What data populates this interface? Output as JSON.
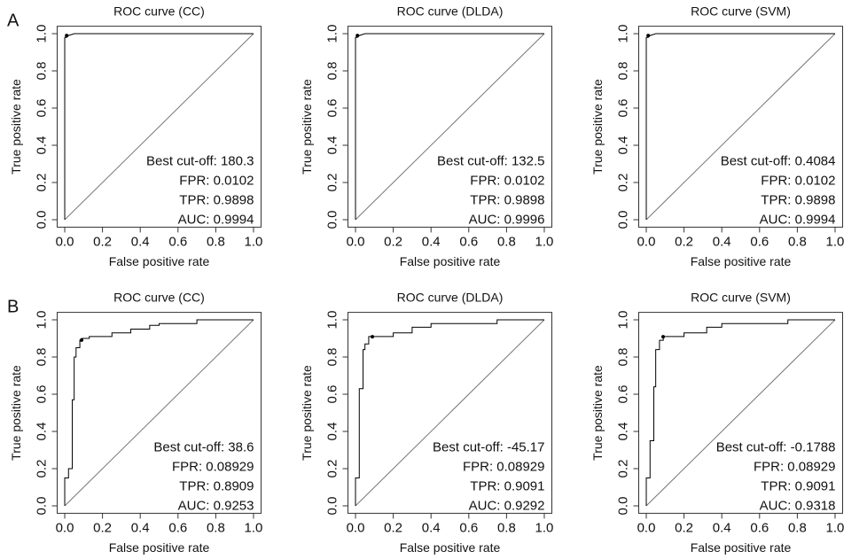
{
  "chart_data": [
    {
      "type": "line",
      "panel_label": "A",
      "title": "ROC curve (CC)",
      "xlabel": "False positive rate",
      "ylabel": "True positive rate",
      "x": [
        0,
        0,
        0.01,
        0.02,
        0.05,
        1
      ],
      "values": [
        0,
        0.98,
        0.98,
        0.99,
        1,
        1
      ],
      "color": "#000000",
      "best_point": {
        "x": 0.0102,
        "y": 0.9898
      },
      "annotations": [
        "Best cut-off: 180.3",
        "FPR: 0.0102",
        "TPR: 0.9898",
        "AUC: 0.9994"
      ],
      "xlim": [
        -0.04,
        1.04
      ],
      "ylim": [
        -0.04,
        1.04
      ],
      "xticks": [
        {
          "value": 0,
          "label": "0.0"
        },
        0.2,
        0.4,
        0.6,
        0.8,
        {
          "value": 1,
          "label": "1.0"
        }
      ],
      "yticks": [
        {
          "value": 0,
          "label": "0.0"
        },
        0.2,
        0.4,
        0.6,
        0.8,
        {
          "value": 1,
          "label": "1.0"
        }
      ]
    },
    {
      "type": "line",
      "title": "ROC curve (DLDA)",
      "xlabel": "False positive rate",
      "ylabel": "True positive rate",
      "x": [
        0,
        0,
        0.01,
        0.02,
        0.05,
        1
      ],
      "values": [
        0,
        0.98,
        0.98,
        0.99,
        1,
        1
      ],
      "color": "#000000",
      "best_point": {
        "x": 0.0102,
        "y": 0.9898
      },
      "annotations": [
        "Best cut-off: 132.5",
        "FPR: 0.0102",
        "TPR: 0.9898",
        "AUC: 0.9996"
      ],
      "xlim": [
        -0.04,
        1.04
      ],
      "ylim": [
        -0.04,
        1.04
      ],
      "xticks": [
        {
          "value": 0,
          "label": "0.0"
        },
        0.2,
        0.4,
        0.6,
        0.8,
        {
          "value": 1,
          "label": "1.0"
        }
      ],
      "yticks": [
        {
          "value": 0,
          "label": "0.0"
        },
        0.2,
        0.4,
        0.6,
        0.8,
        {
          "value": 1,
          "label": "1.0"
        }
      ]
    },
    {
      "type": "line",
      "title": "ROC curve (SVM)",
      "xlabel": "False positive rate",
      "ylabel": "True positive rate",
      "x": [
        0,
        0,
        0.01,
        0.02,
        0.05,
        1
      ],
      "values": [
        0,
        0.98,
        0.98,
        0.99,
        1,
        1
      ],
      "color": "#000000",
      "best_point": {
        "x": 0.0102,
        "y": 0.9898
      },
      "annotations": [
        "Best cut-off: 0.4084",
        "FPR: 0.0102",
        "TPR: 0.9898",
        "AUC: 0.9994"
      ],
      "xlim": [
        -0.04,
        1.04
      ],
      "ylim": [
        -0.04,
        1.04
      ],
      "xticks": [
        {
          "value": 0,
          "label": "0.0"
        },
        0.2,
        0.4,
        0.6,
        0.8,
        {
          "value": 1,
          "label": "1.0"
        }
      ],
      "yticks": [
        {
          "value": 0,
          "label": "0.0"
        },
        0.2,
        0.4,
        0.6,
        0.8,
        {
          "value": 1,
          "label": "1.0"
        }
      ]
    },
    {
      "type": "line",
      "panel_label": "B",
      "title": "ROC curve (CC)",
      "xlabel": "False positive rate",
      "ylabel": "True positive rate",
      "x": [
        0,
        0,
        0.02,
        0.02,
        0.04,
        0.04,
        0.05,
        0.05,
        0.06,
        0.06,
        0.08,
        0.08,
        0.09,
        0.09,
        0.13,
        0.13,
        0.25,
        0.25,
        0.35,
        0.35,
        0.45,
        0.45,
        0.5,
        0.5,
        0.7,
        0.7,
        1
      ],
      "values": [
        0,
        0.15,
        0.15,
        0.2,
        0.2,
        0.57,
        0.57,
        0.8,
        0.8,
        0.85,
        0.85,
        0.89,
        0.89,
        0.9,
        0.9,
        0.91,
        0.91,
        0.93,
        0.93,
        0.95,
        0.95,
        0.97,
        0.97,
        0.98,
        0.98,
        1,
        1
      ],
      "color": "#000000",
      "best_point": {
        "x": 0.08929,
        "y": 0.8909
      },
      "annotations": [
        "Best cut-off: 38.6",
        "FPR: 0.08929",
        "TPR: 0.8909",
        "AUC: 0.9253"
      ],
      "xlim": [
        -0.04,
        1.04
      ],
      "ylim": [
        -0.04,
        1.04
      ],
      "xticks": [
        {
          "value": 0,
          "label": "0.0"
        },
        0.2,
        0.4,
        0.6,
        0.8,
        {
          "value": 1,
          "label": "1.0"
        }
      ],
      "yticks": [
        {
          "value": 0,
          "label": "0.0"
        },
        0.2,
        0.4,
        0.6,
        0.8,
        {
          "value": 1,
          "label": "1.0"
        }
      ]
    },
    {
      "type": "line",
      "title": "ROC curve (DLDA)",
      "xlabel": "False positive rate",
      "ylabel": "True positive rate",
      "x": [
        0,
        0,
        0.02,
        0.02,
        0.04,
        0.04,
        0.05,
        0.05,
        0.07,
        0.07,
        0.2,
        0.2,
        0.3,
        0.3,
        0.4,
        0.4,
        0.75,
        0.75,
        1
      ],
      "values": [
        0,
        0.15,
        0.15,
        0.63,
        0.63,
        0.84,
        0.84,
        0.87,
        0.87,
        0.91,
        0.91,
        0.93,
        0.93,
        0.96,
        0.96,
        0.98,
        0.98,
        1,
        1
      ],
      "color": "#000000",
      "best_point": {
        "x": 0.08929,
        "y": 0.9091
      },
      "annotations": [
        "Best cut-off: -45.17",
        "FPR: 0.08929",
        "TPR: 0.9091",
        "AUC: 0.9292"
      ],
      "xlim": [
        -0.04,
        1.04
      ],
      "ylim": [
        -0.04,
        1.04
      ],
      "xticks": [
        {
          "value": 0,
          "label": "0.0"
        },
        0.2,
        0.4,
        0.6,
        0.8,
        {
          "value": 1,
          "label": "1.0"
        }
      ],
      "yticks": [
        {
          "value": 0,
          "label": "0.0"
        },
        0.2,
        0.4,
        0.6,
        0.8,
        {
          "value": 1,
          "label": "1.0"
        }
      ]
    },
    {
      "type": "line",
      "title": "ROC curve (SVM)",
      "xlabel": "False positive rate",
      "ylabel": "True positive rate",
      "x": [
        0,
        0,
        0.02,
        0.02,
        0.04,
        0.04,
        0.05,
        0.05,
        0.07,
        0.07,
        0.09,
        0.09,
        0.2,
        0.2,
        0.32,
        0.32,
        0.4,
        0.4,
        0.75,
        0.75,
        1
      ],
      "values": [
        0,
        0.15,
        0.15,
        0.35,
        0.35,
        0.64,
        0.64,
        0.84,
        0.84,
        0.89,
        0.89,
        0.91,
        0.91,
        0.93,
        0.93,
        0.96,
        0.96,
        0.98,
        0.98,
        1,
        1
      ],
      "color": "#000000",
      "best_point": {
        "x": 0.08929,
        "y": 0.9091
      },
      "annotations": [
        "Best cut-off: -0.1788",
        "FPR: 0.08929",
        "TPR: 0.9091",
        "AUC: 0.9318"
      ],
      "xlim": [
        -0.04,
        1.04
      ],
      "ylim": [
        -0.04,
        1.04
      ],
      "xticks": [
        {
          "value": 0,
          "label": "0.0"
        },
        0.2,
        0.4,
        0.6,
        0.8,
        {
          "value": 1,
          "label": "1.0"
        }
      ],
      "yticks": [
        {
          "value": 0,
          "label": "0.0"
        },
        0.2,
        0.4,
        0.6,
        0.8,
        {
          "value": 1,
          "label": "1.0"
        }
      ]
    }
  ]
}
